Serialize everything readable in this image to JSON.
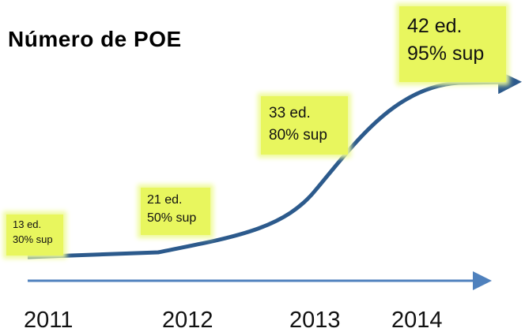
{
  "title": "Número de POE",
  "years": [
    "2011",
    "2012",
    "2013",
    "2014"
  ],
  "labels": [
    {
      "lines": [
        "13 ed.",
        "30% sup"
      ]
    },
    {
      "lines": [
        "21 ed.",
        "50% sup"
      ]
    },
    {
      "lines": [
        "33 ed.",
        "80% sup"
      ]
    },
    {
      "lines": [
        "42 ed.",
        "95% sup"
      ]
    }
  ]
}
